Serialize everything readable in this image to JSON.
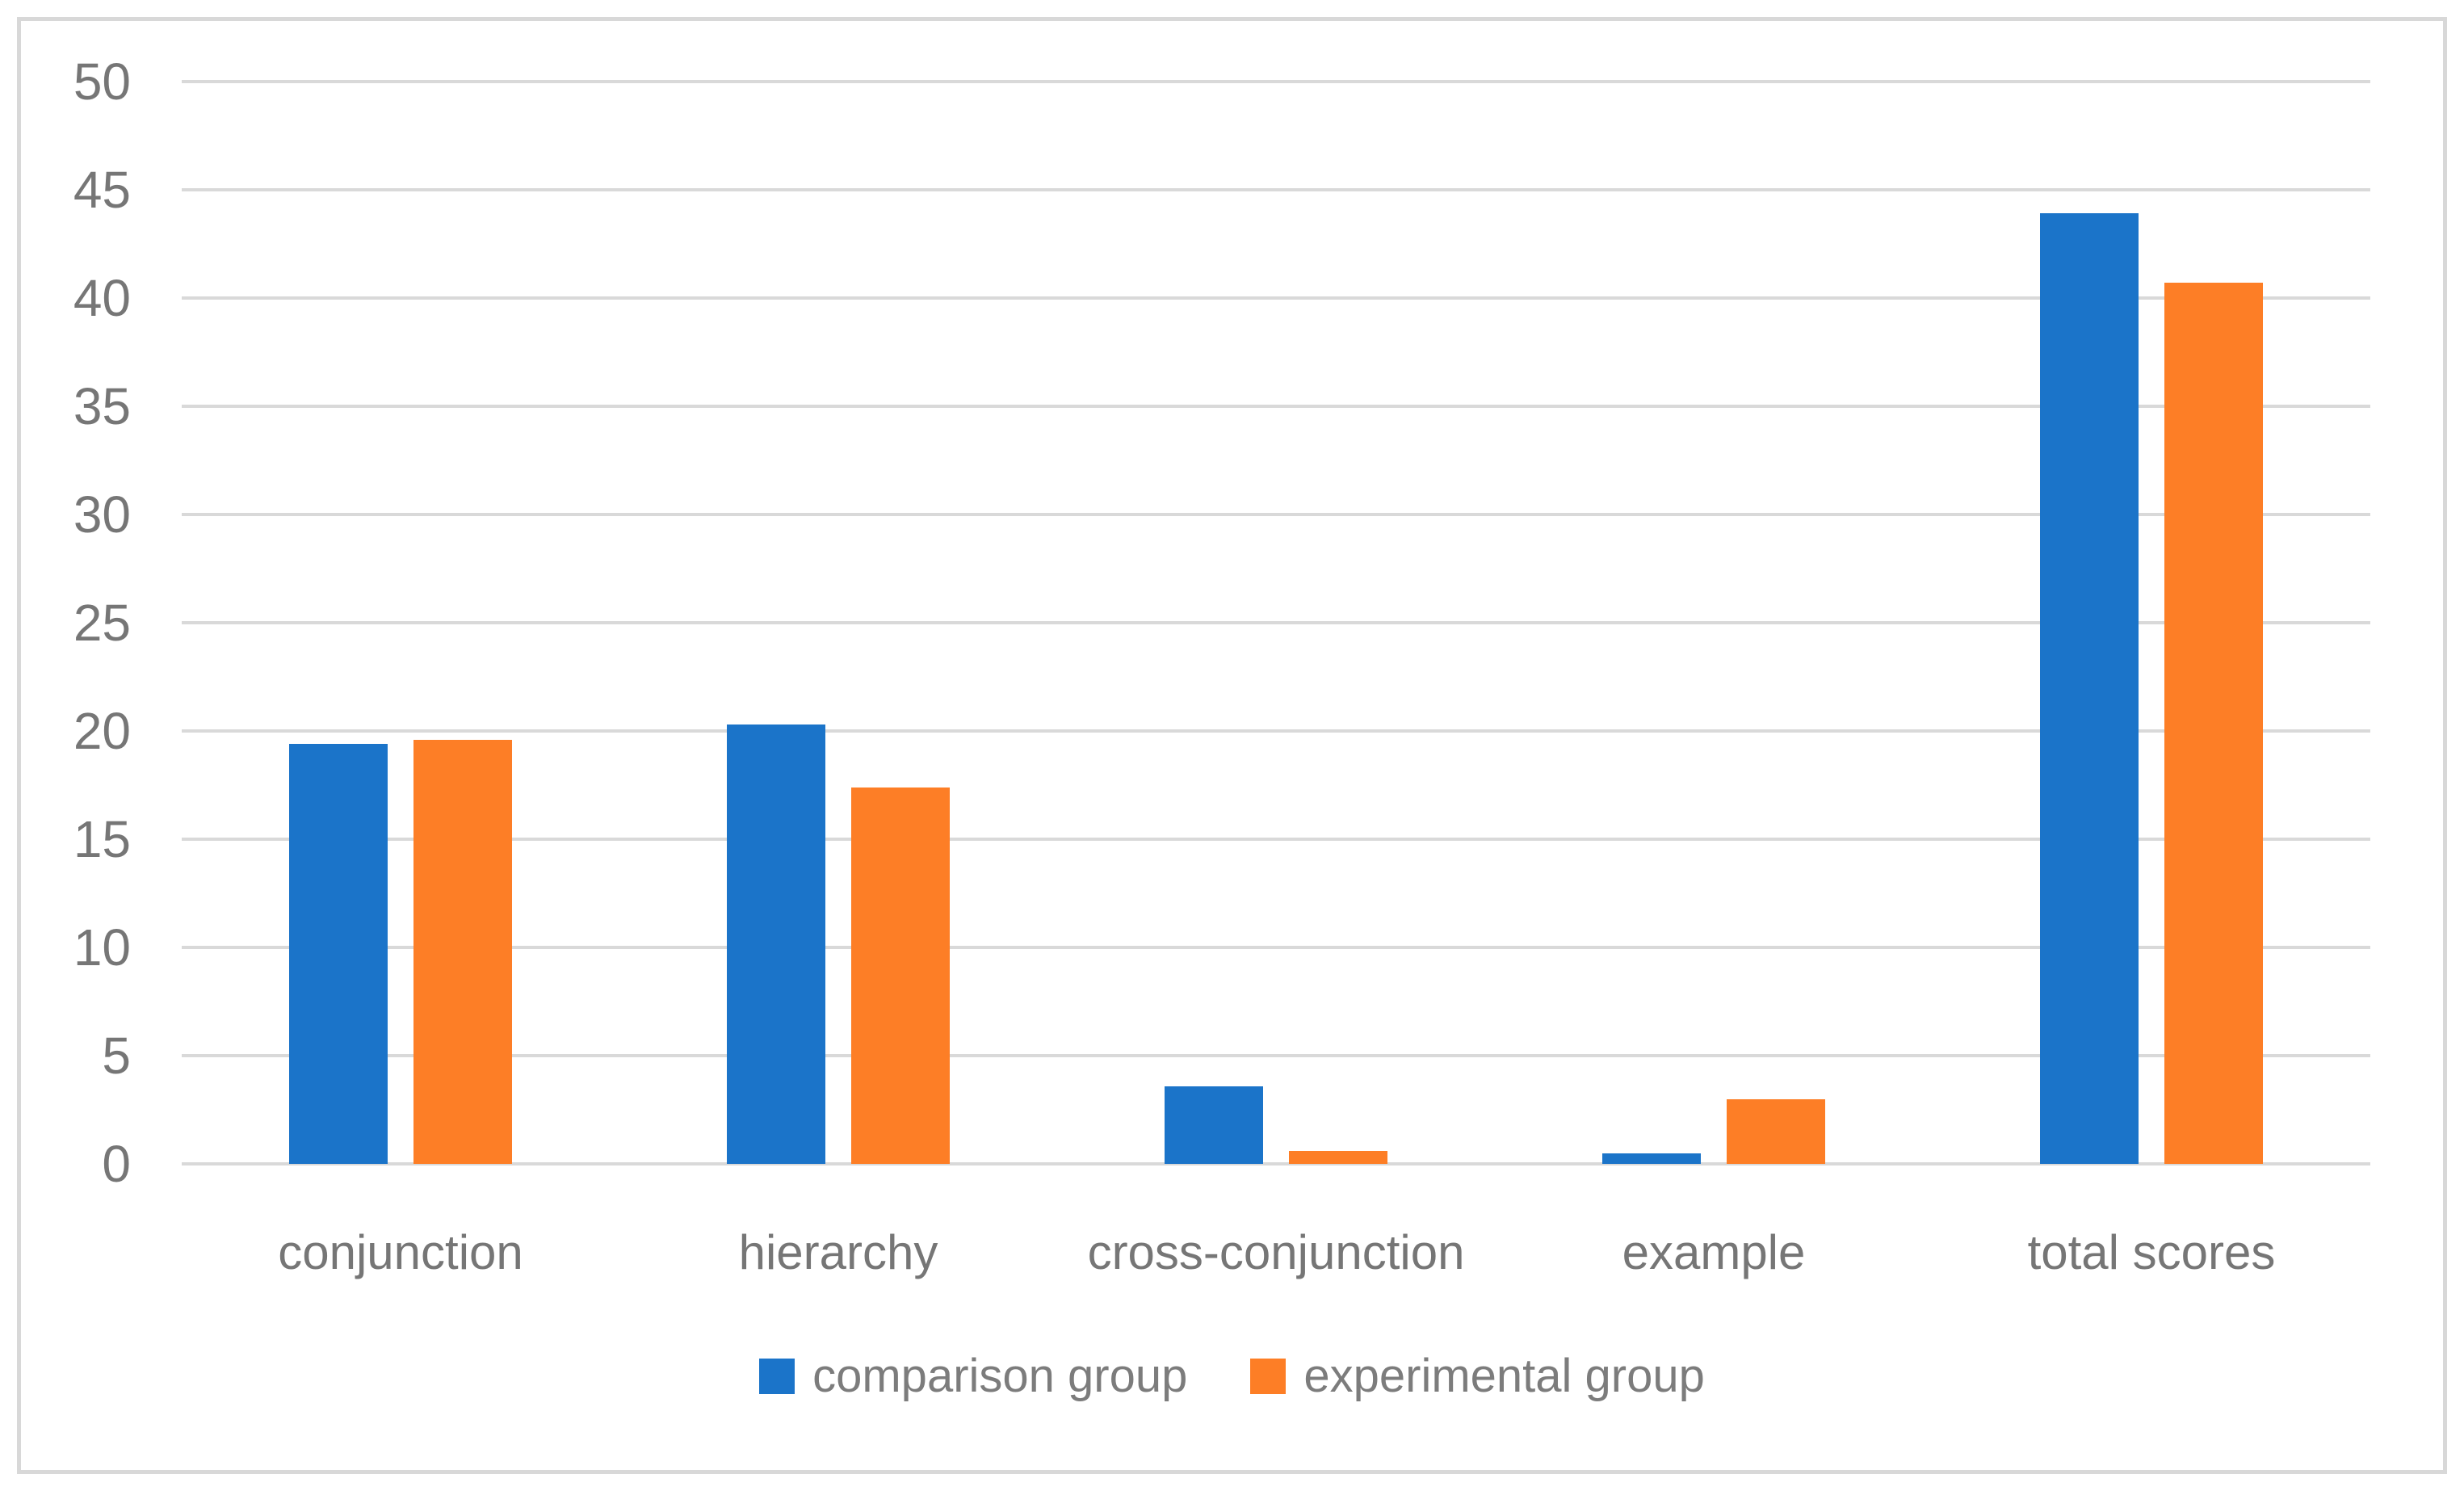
{
  "figure": {
    "background": "#ffffff",
    "border_color": "#d8d8d8"
  },
  "chart_data": {
    "type": "bar",
    "title": "",
    "xlabel": "",
    "ylabel": "",
    "categories": [
      "conjunction",
      "hierarchy",
      "cross-conjunction",
      "example",
      "total scores"
    ],
    "series": [
      {
        "name": "comparison group",
        "color": "#1b74c9",
        "values": [
          19.4,
          20.3,
          3.6,
          0.5,
          43.9
        ]
      },
      {
        "name": "experimental group",
        "color": "#fd7e26",
        "values": [
          19.6,
          17.4,
          0.6,
          3.0,
          40.7
        ]
      }
    ],
    "ylim": [
      0,
      50
    ],
    "y_ticks": [
      0,
      5,
      10,
      15,
      20,
      25,
      30,
      35,
      40,
      45,
      50
    ],
    "grid": true,
    "gridline_color": "#d9d9d9",
    "axis_text_color": "#767676",
    "legend_position": "bottom"
  }
}
